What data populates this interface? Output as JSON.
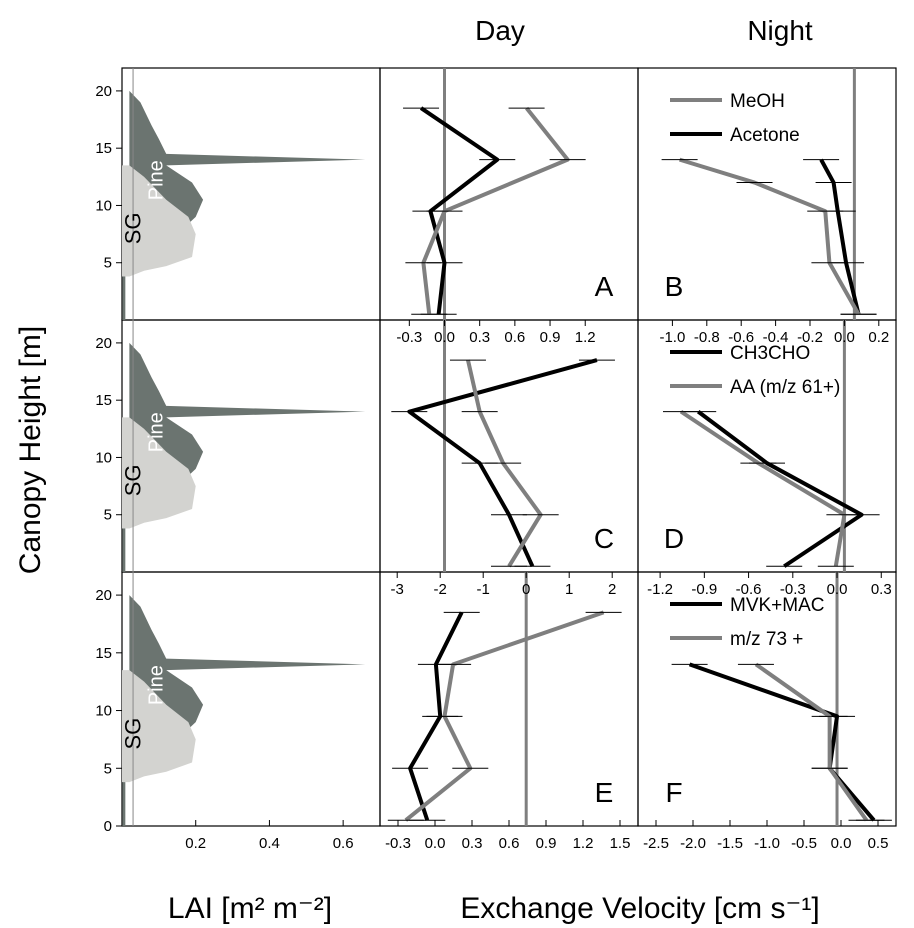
{
  "figure": {
    "col_headers": [
      "Day",
      "Night"
    ],
    "ylabel": "Canopy Height [m]",
    "xlabel_left": "LAI [m² m⁻²]",
    "xlabel_right": "Exchange Velocity [cm s⁻¹]"
  },
  "colors": {
    "pine": "#6b7470",
    "sg": "#d3d3d0",
    "black": "#000000",
    "gray": "#7f7f7f"
  },
  "chart_data": [
    {
      "type": "area",
      "panel": "LAI-top",
      "xticks": [
        "0.2",
        "0.4",
        "0.6"
      ],
      "xlim": [
        0,
        0.7
      ],
      "ylim": [
        0,
        22
      ],
      "yticks": [
        "5",
        "10",
        "15",
        "20"
      ],
      "labels": [
        "Pine",
        "SG"
      ],
      "series": [
        {
          "name": "Pine",
          "x": [
            0.02,
            0.05,
            0.08,
            0.1,
            0.12,
            0.66,
            0.12,
            0.19,
            0.22,
            0.2,
            0.15,
            0.02
          ],
          "y": [
            20,
            19,
            17,
            15.8,
            14.5,
            14.0,
            13.5,
            12.0,
            10.5,
            9.0,
            7.5,
            6.5
          ]
        },
        {
          "name": "SG",
          "x": [
            0.02,
            0.06,
            0.12,
            0.18,
            0.2,
            0.19,
            0.12,
            0.06,
            0.02
          ],
          "y": [
            13.5,
            12.5,
            10.5,
            9.0,
            7.5,
            5.5,
            4.7,
            4.3,
            3.8
          ]
        }
      ]
    },
    {
      "type": "line",
      "panel": "A",
      "period": "Day",
      "xlim": [
        -0.55,
        1.65
      ],
      "ylim": [
        0,
        22
      ],
      "series": [
        {
          "name": "Acetone",
          "x": [
            -0.2,
            0.45,
            -0.12,
            0.0,
            -0.05
          ],
          "y": [
            18.5,
            14.0,
            9.5,
            5.0,
            0.5
          ]
        },
        {
          "name": "MeOH",
          "x": [
            0.7,
            1.05,
            0.0,
            -0.18,
            -0.13
          ],
          "y": [
            18.5,
            14.0,
            9.5,
            5.0,
            0.5
          ]
        }
      ]
    },
    {
      "type": "line",
      "panel": "B",
      "period": "Night",
      "xlim": [
        -2.6,
        0.5
      ],
      "ylim": [
        0,
        22
      ],
      "legend": [
        "MeOH",
        "Acetone"
      ],
      "series": [
        {
          "name": "Acetone",
          "x": [
            -0.4,
            -0.25,
            -0.2,
            -0.1,
            0.05
          ],
          "y": [
            14.0,
            12.0,
            9.5,
            5.0,
            0.5
          ]
        },
        {
          "name": "MeOH",
          "x": [
            -2.1,
            -1.2,
            -0.35,
            -0.3,
            0.05
          ],
          "y": [
            14.0,
            12.0,
            9.5,
            5.0,
            0.5
          ]
        }
      ]
    },
    {
      "type": "line",
      "panel": "C",
      "period": "Day",
      "xticks": [
        "-0.3",
        "0.0",
        "0.3",
        "0.6",
        "0.9",
        "1.2"
      ],
      "xlim": [
        -0.55,
        1.65
      ],
      "ylim": [
        0,
        22
      ],
      "series": [
        {
          "name": "CH3CHO",
          "x": [
            1.3,
            -0.3,
            0.3,
            0.55,
            0.75
          ],
          "y": [
            18.5,
            14.0,
            9.5,
            5.0,
            0.5
          ]
        },
        {
          "name": "AA (m/z 61+)",
          "x": [
            0.2,
            0.3,
            0.5,
            0.82,
            0.55
          ],
          "y": [
            18.5,
            14.0,
            9.5,
            5.0,
            0.5
          ]
        }
      ]
    },
    {
      "type": "line",
      "panel": "D",
      "period": "Night",
      "xticks": [
        "-1.0",
        "-0.8",
        "-0.6",
        "-0.4",
        "-0.2",
        "0.0",
        "0.2"
      ],
      "xlim": [
        -1.2,
        0.3
      ],
      "ylim": [
        0,
        22
      ],
      "legend": [
        "CH3CHO",
        "AA (m/z 61+)"
      ],
      "series": [
        {
          "name": "CH3CHO",
          "x": [
            -0.85,
            -0.45,
            0.1,
            -0.35
          ],
          "y": [
            14.0,
            9.5,
            5.0,
            0.5
          ]
        },
        {
          "name": "AA (m/z 61+)",
          "x": [
            -0.95,
            -0.5,
            0.0,
            -0.05
          ],
          "y": [
            14.0,
            9.5,
            5.0,
            0.5
          ]
        }
      ]
    },
    {
      "type": "line",
      "panel": "E",
      "period": "Day",
      "xticks": [
        "-3",
        "-2",
        "-1",
        "0",
        "1",
        "2"
      ],
      "xticks_bottom": [
        "-0.3",
        "0.0",
        "0.3",
        "0.6",
        "0.9",
        "1.2",
        "1.5"
      ],
      "xlim": [
        -3.4,
        2.6
      ],
      "ylim": [
        0,
        22
      ],
      "series": [
        {
          "name": "MVK+MAC",
          "x": [
            -1.5,
            -2.1,
            -2.0,
            -2.7,
            -2.3
          ],
          "y": [
            18.5,
            14.0,
            9.5,
            5.0,
            0.5
          ]
        },
        {
          "name": "m/z 73 +",
          "x": [
            1.8,
            -1.7,
            -1.9,
            -1.3,
            -2.8
          ],
          "y": [
            18.5,
            14.0,
            9.5,
            5.0,
            0.5
          ]
        }
      ]
    },
    {
      "type": "line",
      "panel": "F",
      "period": "Night",
      "xticks": [
        "-1.2",
        "-0.9",
        "-0.6",
        "-0.3",
        "0.0",
        "0.3"
      ],
      "xticks_bottom": [
        "-2.5",
        "-2.0",
        "-1.5",
        "-1.0",
        "-0.5",
        "0.0",
        "0.5"
      ],
      "xlim": [
        -1.35,
        0.4
      ],
      "ylim": [
        0,
        22
      ],
      "legend": [
        "MVK+MAC",
        "m/z 73 +"
      ],
      "series": [
        {
          "name": "MVK+MAC",
          "x": [
            -1.0,
            0.0,
            -0.05,
            0.25
          ],
          "y": [
            14.0,
            9.5,
            5.0,
            0.5
          ]
        },
        {
          "name": "m/z 73 +",
          "x": [
            -0.55,
            -0.05,
            -0.05,
            0.2
          ],
          "y": [
            14.0,
            9.5,
            5.0,
            0.5
          ]
        }
      ]
    }
  ]
}
